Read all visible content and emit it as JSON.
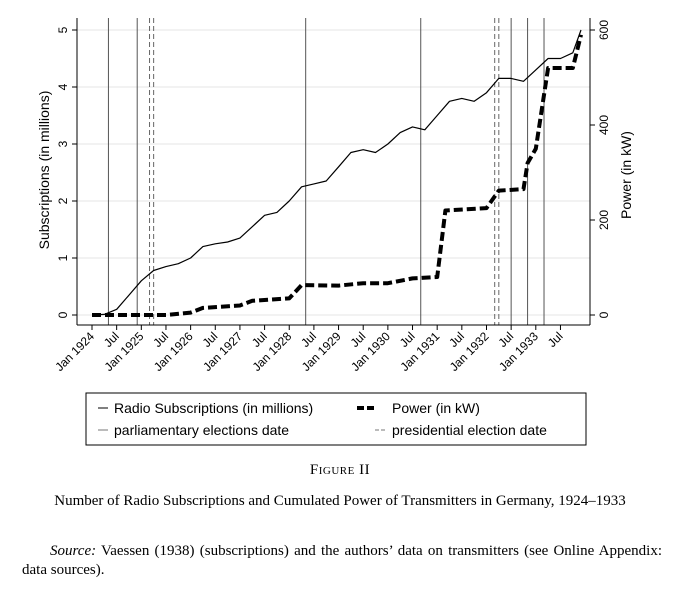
{
  "chart_data": {
    "type": "line",
    "x_ticks": [
      "Jan 1924",
      "Jul",
      "Jan 1925",
      "Jul",
      "Jan 1926",
      "Jul",
      "Jan 1927",
      "Jul",
      "Jan 1928",
      "Jul",
      "Jan 1929",
      "Jul",
      "Jan 1930",
      "Jul",
      "Jan 1931",
      "Jul",
      "Jan 1932",
      "Jul",
      "Jan 1933",
      "Jul"
    ],
    "x_range": [
      "1924-01",
      "1933-12"
    ],
    "y_left": {
      "label": "Subscriptions (in millions)",
      "ticks": [
        0,
        1,
        2,
        3,
        4,
        5
      ],
      "range": [
        0,
        5
      ]
    },
    "y_right": {
      "label": "Power (in kW)",
      "ticks": [
        0,
        200,
        400,
        600
      ],
      "range": [
        0,
        600
      ]
    },
    "series": [
      {
        "name": "Radio Subscriptions (in millions)",
        "axis": "left",
        "style": "solid",
        "points": [
          [
            "1924-01",
            0
          ],
          [
            "1924-04",
            0.01
          ],
          [
            "1924-07",
            0.1
          ],
          [
            "1924-10",
            0.35
          ],
          [
            "1925-01",
            0.6
          ],
          [
            "1925-04",
            0.78
          ],
          [
            "1925-07",
            0.85
          ],
          [
            "1925-10",
            0.9
          ],
          [
            "1926-01",
            1.0
          ],
          [
            "1926-04",
            1.2
          ],
          [
            "1926-07",
            1.25
          ],
          [
            "1926-10",
            1.28
          ],
          [
            "1927-01",
            1.35
          ],
          [
            "1927-04",
            1.55
          ],
          [
            "1927-07",
            1.75
          ],
          [
            "1927-10",
            1.8
          ],
          [
            "1928-01",
            2.0
          ],
          [
            "1928-04",
            2.25
          ],
          [
            "1928-07",
            2.3
          ],
          [
            "1928-10",
            2.35
          ],
          [
            "1929-01",
            2.6
          ],
          [
            "1929-04",
            2.85
          ],
          [
            "1929-07",
            2.9
          ],
          [
            "1929-10",
            2.85
          ],
          [
            "1930-01",
            3.0
          ],
          [
            "1930-04",
            3.2
          ],
          [
            "1930-07",
            3.3
          ],
          [
            "1930-10",
            3.25
          ],
          [
            "1931-01",
            3.5
          ],
          [
            "1931-04",
            3.75
          ],
          [
            "1931-07",
            3.8
          ],
          [
            "1931-10",
            3.75
          ],
          [
            "1932-01",
            3.9
          ],
          [
            "1932-04",
            4.15
          ],
          [
            "1932-07",
            4.15
          ],
          [
            "1932-10",
            4.1
          ],
          [
            "1933-01",
            4.3
          ],
          [
            "1933-04",
            4.5
          ],
          [
            "1933-07",
            4.5
          ],
          [
            "1933-10",
            4.6
          ],
          [
            "1933-12",
            5.0
          ]
        ]
      },
      {
        "name": "Power (in kW)",
        "axis": "right",
        "style": "dashed-bold",
        "points": [
          [
            "1924-01",
            0
          ],
          [
            "1925-07",
            0
          ],
          [
            "1926-01",
            5
          ],
          [
            "1926-04",
            15
          ],
          [
            "1927-01",
            20
          ],
          [
            "1927-04",
            30
          ],
          [
            "1928-01",
            35
          ],
          [
            "1928-04",
            63
          ],
          [
            "1929-01",
            62
          ],
          [
            "1929-07",
            67
          ],
          [
            "1930-01",
            67
          ],
          [
            "1930-07",
            77
          ],
          [
            "1931-01",
            80
          ],
          [
            "1931-03",
            220
          ],
          [
            "1932-01",
            225
          ],
          [
            "1932-04",
            262
          ],
          [
            "1932-10",
            265
          ],
          [
            "1932-11",
            320
          ],
          [
            "1933-01",
            350
          ],
          [
            "1933-04",
            520
          ],
          [
            "1933-10",
            520
          ],
          [
            "1933-12",
            590
          ]
        ]
      }
    ],
    "vertical_lines": {
      "parliamentary": [
        "1924-05",
        "1924-12",
        "1928-05",
        "1930-09",
        "1932-07",
        "1932-11",
        "1933-03"
      ],
      "presidential": [
        "1925-03",
        "1925-04",
        "1932-03",
        "1932-04"
      ]
    },
    "legend": {
      "placement": "bottom",
      "entries": [
        "Radio Subscriptions (in millions)",
        "Power (in kW)",
        "parliamentary elections date",
        "presidential election date"
      ]
    },
    "grid": true
  },
  "caption": {
    "figure_label": "Figure II",
    "title": "Number of Radio Subscriptions and Cumulated Power of Transmitters in Germany, 1924–1933",
    "source_label": "Source:",
    "source_text": " Vaessen (1938) (subscriptions) and the authors’ data on transmitters (see Online Appendix: data sources)."
  }
}
